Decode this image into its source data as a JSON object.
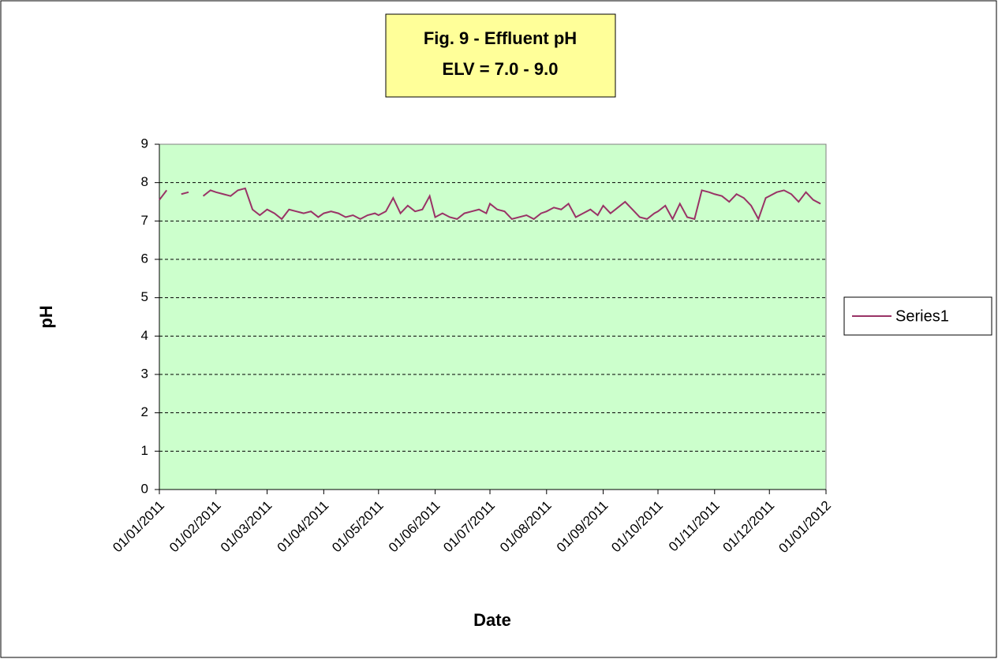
{
  "chart_data": {
    "type": "line",
    "title": "Fig. 9 - Effluent pH",
    "subtitle": "ELV = 7.0 - 9.0",
    "x_label": "Date",
    "y_label": "pH",
    "x": [
      "01/01/2011",
      "05/01/2011",
      "09/01/2011",
      "13/01/2011",
      "17/01/2011",
      "21/01/2011",
      "25/01/2011",
      "29/01/2011",
      "01/02/2011",
      "05/02/2011",
      "09/02/2011",
      "13/02/2011",
      "17/02/2011",
      "21/02/2011",
      "25/02/2011",
      "01/03/2011",
      "05/03/2011",
      "09/03/2011",
      "13/03/2011",
      "17/03/2011",
      "21/03/2011",
      "25/03/2011",
      "29/03/2011",
      "01/04/2011",
      "05/04/2011",
      "09/04/2011",
      "13/04/2011",
      "17/04/2011",
      "21/04/2011",
      "25/04/2011",
      "29/04/2011",
      "01/05/2011",
      "05/05/2011",
      "09/05/2011",
      "13/05/2011",
      "17/05/2011",
      "21/05/2011",
      "25/05/2011",
      "29/05/2011",
      "01/06/2011",
      "05/06/2011",
      "09/06/2011",
      "13/06/2011",
      "17/06/2011",
      "21/06/2011",
      "25/06/2011",
      "29/06/2011",
      "01/07/2011",
      "05/07/2011",
      "09/07/2011",
      "13/07/2011",
      "17/07/2011",
      "21/07/2011",
      "25/07/2011",
      "29/07/2011",
      "01/08/2011",
      "05/08/2011",
      "09/08/2011",
      "13/08/2011",
      "17/08/2011",
      "21/08/2011",
      "25/08/2011",
      "29/08/2011",
      "01/09/2011",
      "05/09/2011",
      "09/09/2011",
      "13/09/2011",
      "17/09/2011",
      "21/09/2011",
      "25/09/2011",
      "29/09/2011",
      "01/10/2011",
      "05/10/2011",
      "09/10/2011",
      "13/10/2011",
      "17/10/2011",
      "21/10/2011",
      "25/10/2011",
      "29/10/2011",
      "01/11/2011",
      "05/11/2011",
      "09/11/2011",
      "13/11/2011",
      "17/11/2011",
      "21/11/2011",
      "25/11/2011",
      "29/11/2011",
      "01/12/2011",
      "05/12/2011",
      "09/12/2011",
      "13/12/2011",
      "17/12/2011",
      "21/12/2011",
      "25/12/2011",
      "29/12/2011"
    ],
    "series": [
      {
        "name": "Series1",
        "color": "#993366",
        "values": [
          7.55,
          7.8,
          null,
          7.7,
          7.75,
          null,
          7.65,
          7.8,
          7.75,
          7.7,
          7.65,
          7.8,
          7.85,
          7.3,
          7.15,
          7.3,
          7.2,
          7.05,
          7.3,
          7.25,
          7.2,
          7.25,
          7.1,
          7.2,
          7.25,
          7.2,
          7.1,
          7.15,
          7.05,
          7.15,
          7.2,
          7.15,
          7.25,
          7.6,
          7.2,
          7.4,
          7.25,
          7.3,
          7.65,
          7.1,
          7.2,
          7.1,
          7.05,
          7.2,
          7.25,
          7.3,
          7.2,
          7.45,
          7.3,
          7.25,
          7.05,
          7.1,
          7.15,
          7.05,
          7.2,
          7.25,
          7.35,
          7.3,
          7.45,
          7.1,
          7.2,
          7.3,
          7.15,
          7.4,
          7.2,
          7.35,
          7.5,
          7.3,
          7.1,
          7.05,
          7.2,
          7.25,
          7.4,
          7.05,
          7.45,
          7.1,
          7.05,
          7.8,
          7.75,
          7.7,
          7.65,
          7.5,
          7.7,
          7.6,
          7.4,
          7.05,
          7.6,
          7.65,
          7.75,
          7.8,
          7.7,
          7.5,
          7.75,
          7.55,
          7.45
        ]
      }
    ],
    "xlim": [
      "01/01/2011",
      "01/01/2012"
    ],
    "xticks": [
      "01/01/2011",
      "01/02/2011",
      "01/03/2011",
      "01/04/2011",
      "01/05/2011",
      "01/06/2011",
      "01/07/2011",
      "01/08/2011",
      "01/09/2011",
      "01/10/2011",
      "01/11/2011",
      "01/12/2011",
      "01/01/2012"
    ],
    "ylim": [
      0,
      9
    ],
    "yticks": [
      0,
      1,
      2,
      3,
      4,
      5,
      6,
      7,
      8,
      9
    ],
    "grid": true,
    "legend": "right",
    "plot_background": "#ccffcc"
  }
}
